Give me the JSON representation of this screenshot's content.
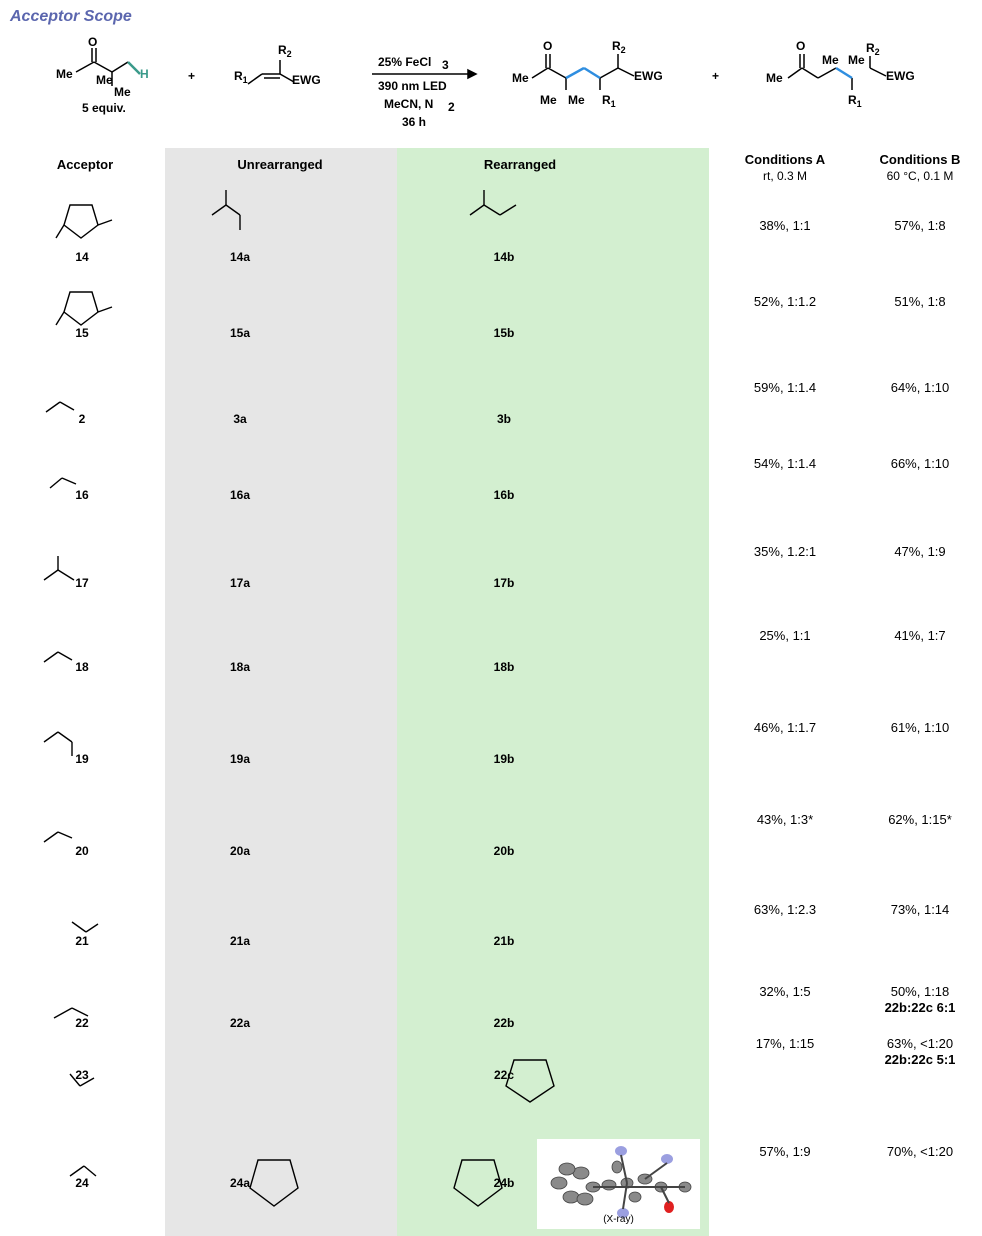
{
  "title": "Acceptor Scope",
  "scheme": {
    "reagent_equiv": "5 equiv.",
    "conditions": [
      "25% FeCl",
      "390 nm LED",
      "MeCN, N",
      "36 h"
    ],
    "plus": "+",
    "H": "H",
    "EWG": "EWG",
    "R1": "R",
    "R2": "R"
  },
  "headers": {
    "acceptor": "Acceptor",
    "unrearranged": "Unrearranged",
    "rearranged": "Rearranged",
    "condA": "Conditions A",
    "condA_sub": "rt, 0.3 M",
    "condB": "Conditions B",
    "condB_sub": "60 °C, 0.1 M"
  },
  "rows": [
    {
      "acceptor": "14",
      "unrearranged": "14a",
      "rearranged": "14b",
      "condA": "38%, 1:1",
      "condB": "57%, 1:8",
      "condB_extra": ""
    },
    {
      "acceptor": "15",
      "unrearranged": "15a",
      "rearranged": "15b",
      "condA": "52%, 1:1.2",
      "condB": "51%, 1:8",
      "condB_extra": ""
    },
    {
      "acceptor": "2",
      "unrearranged": "3a",
      "rearranged": "3b",
      "condA": "59%, 1:1.4",
      "condB": "64%, 1:10",
      "condB_extra": ""
    },
    {
      "acceptor": "16",
      "unrearranged": "16a",
      "rearranged": "16b",
      "condA": "54%, 1:1.4",
      "condB": "66%, 1:10",
      "condB_extra": ""
    },
    {
      "acceptor": "17",
      "unrearranged": "17a",
      "rearranged": "17b",
      "condA": "35%, 1.2:1",
      "condB": "47%, 1:9",
      "condB_extra": ""
    },
    {
      "acceptor": "18",
      "unrearranged": "18a",
      "rearranged": "18b",
      "condA": "25%, 1:1",
      "condB": "41%, 1:7",
      "condB_extra": ""
    },
    {
      "acceptor": "19",
      "unrearranged": "19a",
      "rearranged": "19b",
      "condA": "46%, 1:1.7",
      "condB": "61%, 1:10",
      "condB_extra": ""
    },
    {
      "acceptor": "20",
      "unrearranged": "20a",
      "rearranged": "20b",
      "condA": "43%, 1:3*",
      "condB": "62%, 1:15*",
      "condB_extra": ""
    },
    {
      "acceptor": "21",
      "unrearranged": "21a",
      "rearranged": "21b",
      "condA": "63%, 1:2.3",
      "condB": "73%, 1:14",
      "condB_extra": ""
    },
    {
      "acceptor": "22",
      "unrearranged": "22a",
      "rearranged": "22b",
      "condA": "32%, 1:5",
      "condB": "50%, 1:18",
      "condB_extra": "22b:22c 6:1"
    },
    {
      "acceptor": "23",
      "unrearranged": "",
      "rearranged": "22c",
      "condA": "17%, 1:15",
      "condB": "63%, <1:20",
      "condB_extra": "22b:22c 5:1"
    },
    {
      "acceptor": "24",
      "unrearranged": "24a",
      "rearranged": "24b",
      "condA": "57%, 1:9",
      "condB": "70%, <1:20",
      "condB_extra": ""
    }
  ],
  "xray_label": "(X-ray)"
}
